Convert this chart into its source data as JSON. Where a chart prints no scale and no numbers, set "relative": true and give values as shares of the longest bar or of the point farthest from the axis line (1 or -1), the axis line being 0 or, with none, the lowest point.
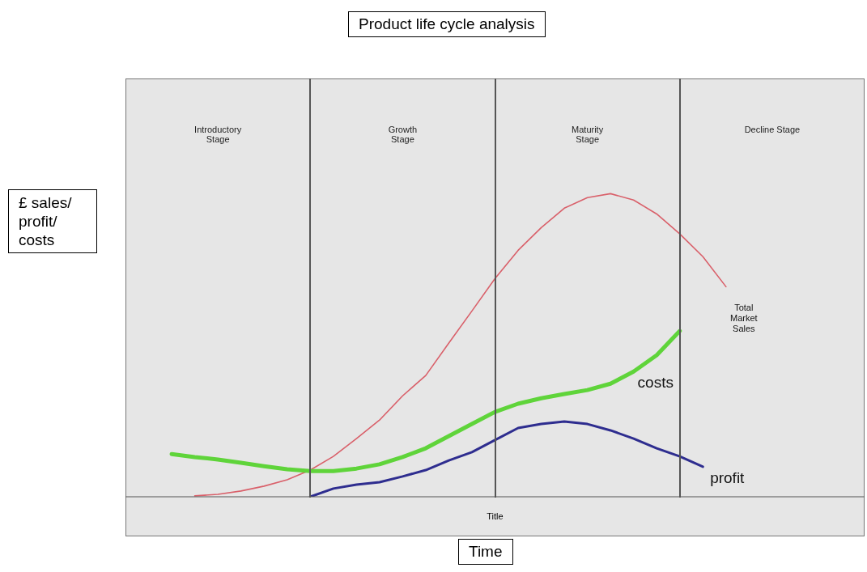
{
  "chart_data": {
    "type": "line",
    "title": "Product life cycle analysis",
    "xlabel": "Time",
    "ylabel": "£ sales/ profit/ costs",
    "relative": true,
    "marker": "none",
    "line_style": "solid",
    "categories": [
      null,
      null,
      null,
      null,
      null,
      null,
      null,
      null,
      null,
      null,
      null,
      null,
      null,
      null,
      null,
      null,
      null,
      null,
      null,
      null,
      null,
      null,
      null,
      null,
      null,
      null,
      null,
      null,
      null,
      null,
      null,
      null,
      null
    ],
    "series": [
      {
        "name": "Total Market Sales",
        "color": "#d9606a",
        "values": [
          null,
          null,
          null,
          0.003,
          0.008,
          0.019,
          0.035,
          0.056,
          0.088,
          0.133,
          0.192,
          0.253,
          0.333,
          0.4,
          0.507,
          0.613,
          0.72,
          0.813,
          0.888,
          0.952,
          0.987,
          1.0,
          0.979,
          0.933,
          0.867,
          0.792,
          0.693,
          null,
          null,
          null,
          null,
          null,
          null
        ]
      },
      {
        "name": "costs",
        "color": "#5fd43a",
        "values": [
          null,
          null,
          0.141,
          0.131,
          0.123,
          0.112,
          0.101,
          0.091,
          0.085,
          0.085,
          0.093,
          0.107,
          0.131,
          0.16,
          0.2,
          0.24,
          0.28,
          0.307,
          0.325,
          0.339,
          0.352,
          0.373,
          0.413,
          0.467,
          0.547,
          null,
          null,
          null,
          null,
          null,
          null,
          null,
          null
        ]
      },
      {
        "name": "profit",
        "color": "#2e2d8f",
        "values": [
          null,
          null,
          null,
          null,
          null,
          null,
          null,
          null,
          0,
          0.027,
          0.04,
          0.048,
          0.067,
          0.088,
          0.12,
          0.147,
          0.187,
          0.227,
          0.24,
          0.248,
          0.24,
          0.219,
          0.192,
          0.16,
          0.133,
          0.099,
          null,
          null,
          null,
          null,
          null,
          null,
          null
        ]
      }
    ],
    "annotations": [
      "Introductory Stage",
      "Growth Stage",
      "Maturity Stage",
      "Decline Stage",
      "Title"
    ]
  }
}
